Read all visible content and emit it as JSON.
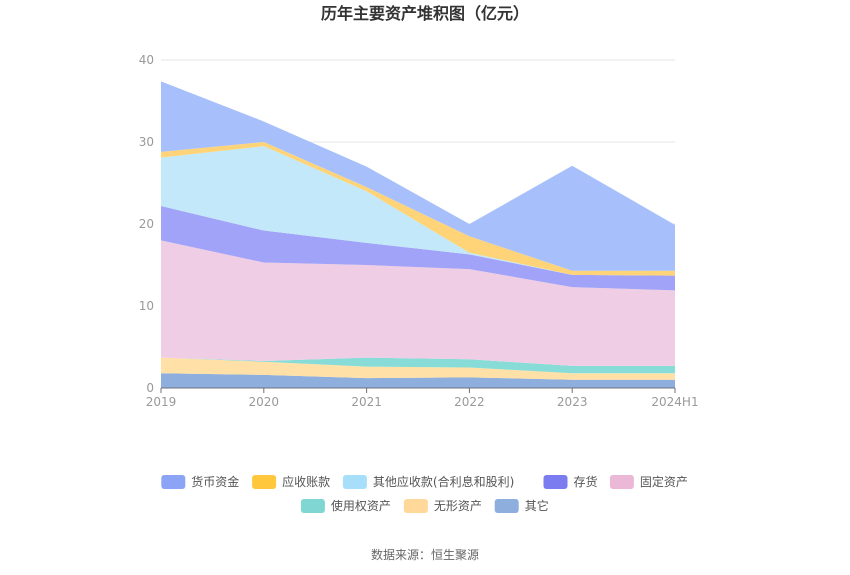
{
  "chart_data": {
    "type": "area",
    "stacked": true,
    "title": "历年主要资产堆积图（亿元）",
    "source_text": "数据来源：恒生聚源",
    "categories": [
      "2019",
      "2020",
      "2021",
      "2022",
      "2023",
      "2024H1"
    ],
    "ylim": [
      0,
      40
    ],
    "yticks": [
      0,
      10,
      20,
      30,
      40
    ],
    "grid": true,
    "legend_position": "bottom",
    "series": [
      {
        "name": "其它",
        "color": "#8eaede",
        "values": [
          1.8,
          1.6,
          1.2,
          1.3,
          1.0,
          1.0
        ]
      },
      {
        "name": "无形资产",
        "color": "#ffe0a6",
        "values": [
          1.9,
          1.6,
          1.4,
          1.2,
          0.8,
          0.8
        ]
      },
      {
        "name": "使用权资产",
        "color": "#87dcd8",
        "values": [
          0.0,
          0.1,
          1.1,
          1.0,
          0.9,
          0.9
        ]
      },
      {
        "name": "固定资产",
        "color": "#efcde4",
        "values": [
          14.3,
          12.0,
          11.3,
          11.0,
          9.6,
          9.2
        ]
      },
      {
        "name": "存货",
        "color": "#a1a3f8",
        "values": [
          4.2,
          3.9,
          2.7,
          1.8,
          1.5,
          1.8
        ]
      },
      {
        "name": "其他应收款(合利息和股利)",
        "color": "#c2e8f9",
        "values": [
          5.9,
          10.3,
          6.3,
          0.2,
          0.0,
          0.0
        ]
      },
      {
        "name": "应收账款",
        "color": "#ffd479",
        "values": [
          0.7,
          0.5,
          0.5,
          2.0,
          0.5,
          0.6
        ]
      },
      {
        "name": "货币资金",
        "color": "#a7c0fb",
        "values": [
          8.6,
          2.5,
          2.5,
          1.5,
          12.8,
          5.6
        ]
      }
    ],
    "legend": [
      {
        "name": "货币资金",
        "color": "#8ba4f6"
      },
      {
        "name": "应收账款",
        "color": "#ffc73b"
      },
      {
        "name": "其他应收款(合利息和股利)",
        "color": "#a7def9"
      },
      {
        "name": "存货",
        "color": "#7b7cf0"
      },
      {
        "name": "固定资产",
        "color": "#ebb8d8"
      },
      {
        "name": "使用权资产",
        "color": "#7fd6d2"
      },
      {
        "name": "无形资产",
        "color": "#ffd89a"
      },
      {
        "name": "其它",
        "color": "#8eaede"
      }
    ]
  }
}
